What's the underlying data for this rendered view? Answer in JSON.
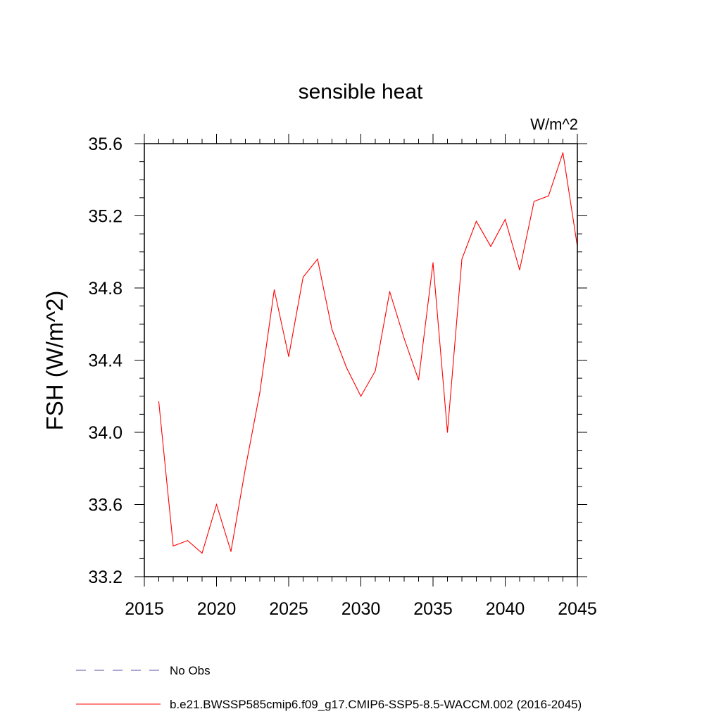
{
  "chart_data": {
    "type": "line",
    "title": "sensible heat",
    "units_label": "W/m^2",
    "xlabel": "",
    "ylabel": "FSH  (W/m^2)",
    "xlim": [
      2015,
      2045
    ],
    "ylim": [
      33.2,
      35.6
    ],
    "x_ticks": [
      2015,
      2020,
      2025,
      2030,
      2035,
      2040,
      2045
    ],
    "x_tick_labels": [
      "2015",
      "2020",
      "2025",
      "2030",
      "2035",
      "2040",
      "2045"
    ],
    "x_minor_step": 1,
    "y_ticks": [
      33.2,
      33.6,
      34.0,
      34.4,
      34.8,
      35.2,
      35.6
    ],
    "y_tick_labels": [
      "33.2",
      "33.6",
      "34.0",
      "34.4",
      "34.8",
      "35.2",
      "35.6"
    ],
    "y_minor_step": 0.1,
    "grid": false,
    "legend_placement": "bottom-left",
    "series": [
      {
        "name": "b.e21.BWSSP585cmip6.f09_g17.CMIP6-SSP5-8.5-WACCM.002 (2016-2045)",
        "color": "#ff0000",
        "dash": "solid",
        "x": [
          2016,
          2017,
          2018,
          2019,
          2020,
          2021,
          2022,
          2023,
          2024,
          2025,
          2026,
          2027,
          2028,
          2029,
          2030,
          2031,
          2032,
          2033,
          2034,
          2035,
          2036,
          2037,
          2038,
          2039,
          2040,
          2041,
          2042,
          2043,
          2044,
          2045
        ],
        "values": [
          34.17,
          33.37,
          33.4,
          33.33,
          33.6,
          33.34,
          33.8,
          34.22,
          34.79,
          34.42,
          34.86,
          34.96,
          34.57,
          34.36,
          34.2,
          34.34,
          34.78,
          34.52,
          34.29,
          34.94,
          34.0,
          34.96,
          35.17,
          35.03,
          35.18,
          34.9,
          35.28,
          35.31,
          35.55,
          35.03
        ]
      }
    ],
    "legend": [
      {
        "label": "No Obs",
        "color": "#5a4fa0",
        "dash": "dashed"
      },
      {
        "label": "b.e21.BWSSP585cmip6.f09_g17.CMIP6-SSP5-8.5-WACCM.002 (2016-2045)",
        "color": "#ff0000",
        "dash": "solid"
      }
    ]
  }
}
